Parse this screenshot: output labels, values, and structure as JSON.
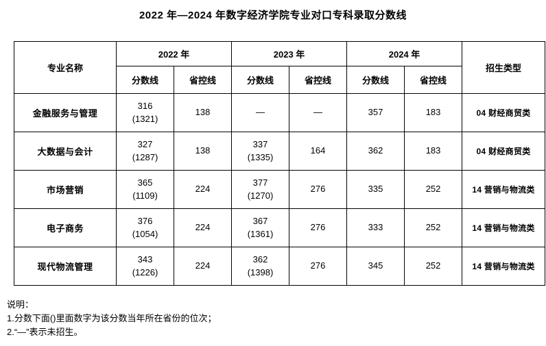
{
  "title": "2022 年—2024 年数字经济学院专业对口专科录取分数线",
  "table": {
    "program_header": "专业名称",
    "type_header": "招生类型",
    "score_header": "分数线",
    "control_header": "省控线",
    "years": [
      "2022 年",
      "2023 年",
      "2024 年"
    ],
    "rows": [
      {
        "program": "金融服务与管理",
        "y2022": {
          "score": "316",
          "rank": "(1321)",
          "control": "138"
        },
        "y2023": {
          "score": "—",
          "rank": "",
          "control": "—"
        },
        "y2024": {
          "score": "357",
          "rank": "",
          "control": "183"
        },
        "type": "04 财经商贸类"
      },
      {
        "program": "大数据与会计",
        "y2022": {
          "score": "327",
          "rank": "(1287)",
          "control": "138"
        },
        "y2023": {
          "score": "337",
          "rank": "(1335)",
          "control": "164"
        },
        "y2024": {
          "score": "362",
          "rank": "",
          "control": "183"
        },
        "type": "04 财经商贸类"
      },
      {
        "program": "市场营销",
        "y2022": {
          "score": "365",
          "rank": "(1109)",
          "control": "224"
        },
        "y2023": {
          "score": "377",
          "rank": "(1270)",
          "control": "276"
        },
        "y2024": {
          "score": "335",
          "rank": "",
          "control": "252"
        },
        "type": "14 营销与物流类"
      },
      {
        "program": "电子商务",
        "y2022": {
          "score": "376",
          "rank": "(1054)",
          "control": "224"
        },
        "y2023": {
          "score": "367",
          "rank": "(1361)",
          "control": "276"
        },
        "y2024": {
          "score": "333",
          "rank": "",
          "control": "252"
        },
        "type": "14 营销与物流类"
      },
      {
        "program": "现代物流管理",
        "y2022": {
          "score": "343",
          "rank": "(1226)",
          "control": "224"
        },
        "y2023": {
          "score": "362",
          "rank": "(1398)",
          "control": "276"
        },
        "y2024": {
          "score": "345",
          "rank": "",
          "control": "252"
        },
        "type": "14 营销与物流类"
      }
    ]
  },
  "notes": {
    "heading": "说明：",
    "items": [
      "1.分数下面()里面数字为该分数当年所在省份的位次；",
      "2.“—”表示未招生。"
    ]
  }
}
